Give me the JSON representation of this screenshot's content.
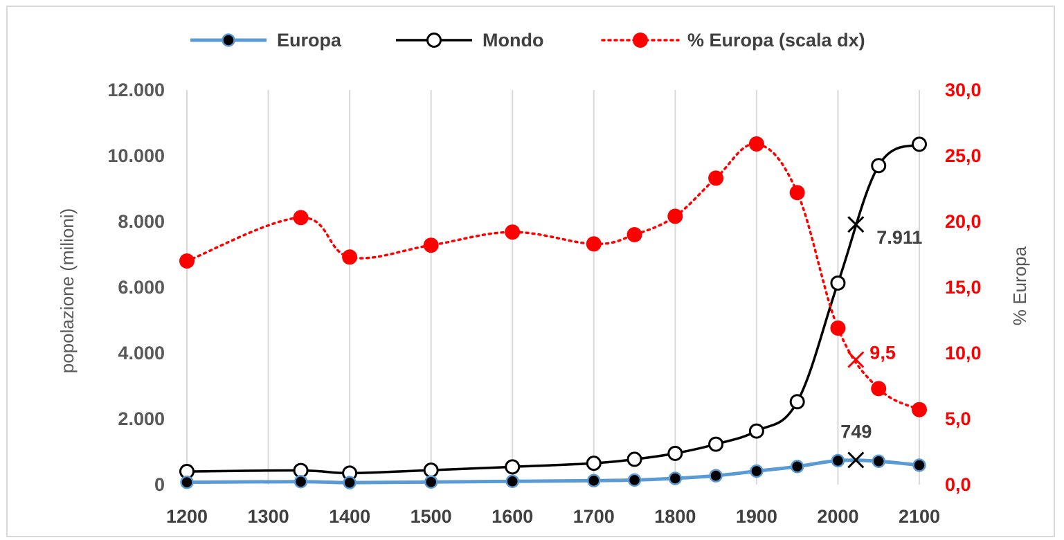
{
  "chart_data": {
    "type": "line",
    "x_ticks": [
      "1200",
      "1300",
      "1400",
      "1500",
      "1600",
      "1700",
      "1800",
      "1900",
      "2000",
      "2100"
    ],
    "x_range": [
      1200,
      2100
    ],
    "y_left": {
      "label": "popolazione (milioni)",
      "range": [
        0,
        12000
      ],
      "ticks": [
        0,
        2000,
        4000,
        6000,
        8000,
        10000,
        12000
      ],
      "tick_labels": [
        "0",
        "2.000",
        "4.000",
        "6.000",
        "8.000",
        "10.000",
        "12.000"
      ]
    },
    "y_right": {
      "label": "% Europa",
      "range": [
        0,
        30
      ],
      "ticks": [
        0,
        5,
        10,
        15,
        20,
        25,
        30
      ],
      "tick_labels": [
        "0,0",
        "5,0",
        "10,0",
        "15,0",
        "20,0",
        "25,0",
        "30,0"
      ]
    },
    "grid": "vertical",
    "legend_position": "top",
    "series": [
      {
        "name": "Europa",
        "axis": "left",
        "style": "line-filled-dot",
        "color": "#5b9bd5",
        "x": [
          1200,
          1340,
          1400,
          1500,
          1600,
          1700,
          1750,
          1800,
          1850,
          1900,
          1950,
          2000,
          2050,
          2100
        ],
        "values": [
          70,
          90,
          60,
          80,
          100,
          120,
          140,
          190,
          270,
          410,
          550,
          730,
          710,
          590
        ]
      },
      {
        "name": "Mondo",
        "axis": "left",
        "style": "line-open-dot",
        "color": "#000000",
        "x": [
          1200,
          1340,
          1400,
          1500,
          1600,
          1700,
          1750,
          1800,
          1850,
          1900,
          1950,
          2000,
          2050,
          2100
        ],
        "values": [
          400,
          430,
          350,
          440,
          540,
          650,
          770,
          950,
          1230,
          1630,
          2520,
          6130,
          9700,
          10350
        ]
      },
      {
        "name": "% Europa (scala dx)",
        "axis": "right",
        "style": "dotted-red",
        "color": "#ff0000",
        "x": [
          1200,
          1340,
          1400,
          1500,
          1600,
          1700,
          1750,
          1800,
          1850,
          1900,
          1950,
          2000,
          2050,
          2100
        ],
        "values": [
          17.0,
          20.3,
          17.3,
          18.2,
          19.2,
          18.3,
          19.0,
          20.4,
          23.3,
          25.9,
          22.2,
          11.9,
          7.3,
          5.7
        ]
      }
    ],
    "annotations": [
      {
        "x": 2022,
        "y": 7911,
        "axis": "left",
        "text": "7.911",
        "color": "#404040",
        "label_pos": "below-right"
      },
      {
        "x": 2022,
        "y": 749,
        "axis": "left",
        "text": "749",
        "color": "#404040",
        "label_pos": "above"
      },
      {
        "x": 2022,
        "y": 9.5,
        "axis": "right",
        "text": "9,5",
        "color": "#ff0000",
        "label_pos": "right"
      }
    ]
  }
}
